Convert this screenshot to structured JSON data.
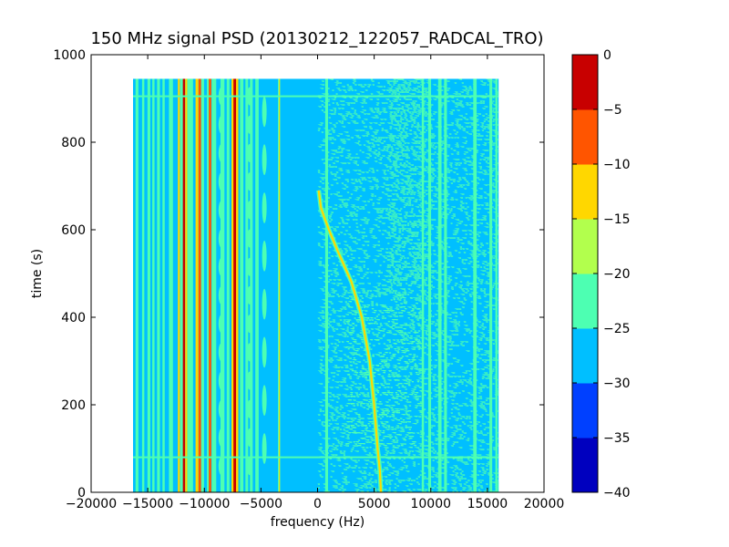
{
  "chart_data": {
    "type": "heatmap",
    "title": "150 MHz signal PSD (20130212_122057_RADCAL_TRO)",
    "xlabel": "frequency (Hz)",
    "ylabel": "time (s)",
    "xlim": [
      -20000,
      20000
    ],
    "ylim": [
      0,
      1000
    ],
    "x_ticks": [
      -20000,
      -15000,
      -10000,
      -5000,
      0,
      5000,
      10000,
      15000,
      20000
    ],
    "x_tick_labels": [
      "−20000",
      "−15000",
      "−10000",
      "−5000",
      "0",
      "5000",
      "10000",
      "15000",
      "20000"
    ],
    "y_ticks": [
      0,
      200,
      400,
      600,
      800,
      1000
    ],
    "y_tick_labels": [
      "0",
      "200",
      "400",
      "600",
      "800",
      "1000"
    ],
    "data_extent": {
      "freq": [
        -16300,
        16000
      ],
      "time": [
        0,
        945
      ]
    },
    "background_level": -27.5,
    "colorbar": {
      "levels": [
        -40,
        -35,
        -30,
        -25,
        -20,
        -15,
        -10,
        -5,
        0
      ],
      "tick_labels": [
        "−40",
        "−35",
        "−30",
        "−25",
        "−20",
        "−15",
        "−10",
        "−5",
        "0"
      ],
      "colors": [
        "#0000bf",
        "#0033ff",
        "#0099ff",
        "#00bfff",
        "#4dffb2",
        "#b2ff4d",
        "#ffcc00",
        "#ff5500",
        "#cc0000"
      ],
      "band_colors": [
        "#0000bf",
        "#0040ff",
        "#00bfff",
        "#4dffb2",
        "#b2ff4d",
        "#ffd700",
        "#ff5500",
        "#c80000"
      ]
    },
    "stripes": [
      {
        "f": -15950,
        "w": 250,
        "level": -22
      },
      {
        "f": -15400,
        "w": 200,
        "level": -22
      },
      {
        "f": -14900,
        "w": 250,
        "level": -22
      },
      {
        "f": -14500,
        "w": 200,
        "level": -22
      },
      {
        "f": -14050,
        "w": 250,
        "level": -22
      },
      {
        "f": -13600,
        "w": 200,
        "level": -22
      },
      {
        "f": -12950,
        "w": 350,
        "level": -22
      },
      {
        "f": -12250,
        "w": 180,
        "level": -15
      },
      {
        "f": -12000,
        "w": 260,
        "level": -22
      },
      {
        "f": -11800,
        "w": 200,
        "level": -5
      },
      {
        "f": -11600,
        "w": 180,
        "level": -15
      },
      {
        "f": -11250,
        "w": 500,
        "level": -22
      },
      {
        "f": -10650,
        "w": 250,
        "level": -15
      },
      {
        "f": -10400,
        "w": 220,
        "level": -10
      },
      {
        "f": -10150,
        "w": 250,
        "level": -22
      },
      {
        "f": -9650,
        "w": 250,
        "level": -22
      },
      {
        "f": -9500,
        "w": 220,
        "level": -10
      },
      {
        "f": -9150,
        "w": 400,
        "level": -22
      },
      {
        "f": -8400,
        "w": 350,
        "level": -22
      },
      {
        "f": -7900,
        "w": 250,
        "level": -22
      },
      {
        "f": -7500,
        "w": 200,
        "level": -15
      },
      {
        "f": -7300,
        "w": 260,
        "level": -5
      },
      {
        "f": -7100,
        "w": 200,
        "level": -15
      },
      {
        "f": -6700,
        "w": 300,
        "level": -22
      },
      {
        "f": -6250,
        "w": 250,
        "level": -22
      },
      {
        "f": -5850,
        "w": 250,
        "level": -22
      },
      {
        "f": -5350,
        "w": 300,
        "level": -22
      },
      {
        "f": -3400,
        "w": 200,
        "level": -22
      },
      {
        "f": -3380,
        "w": 60,
        "level": -15
      },
      {
        "f": 800,
        "w": 250,
        "level": -22
      },
      {
        "f": 9300,
        "w": 200,
        "level": -22
      },
      {
        "f": 9900,
        "w": 250,
        "level": -22
      },
      {
        "f": 10800,
        "w": 300,
        "level": -22
      },
      {
        "f": 11300,
        "w": 250,
        "level": -22
      },
      {
        "f": 13900,
        "w": 300,
        "level": -22
      },
      {
        "f": 15300,
        "w": 250,
        "level": -22
      },
      {
        "f": 15800,
        "w": 200,
        "level": -22
      }
    ],
    "noise_bands": [
      {
        "f": [
          0,
          16000
        ],
        "t": [
          0,
          945
        ],
        "level": -22,
        "density": 0.18
      },
      {
        "f": [
          6000,
          10000
        ],
        "t": [
          450,
          945
        ],
        "level": -22,
        "density": 0.22
      },
      {
        "f": [
          2500,
          9000
        ],
        "t": [
          100,
          450
        ],
        "level": -22,
        "density": 0.12
      }
    ],
    "horizontal_lines": [
      {
        "t": 80,
        "f": [
          -16300,
          16000
        ],
        "level": -22
      },
      {
        "t": 905,
        "f": [
          -16300,
          16000
        ],
        "level": -22
      }
    ],
    "sweep": {
      "level": -15,
      "points": [
        {
          "f": 5600,
          "t": 0
        },
        {
          "f": 5500,
          "t": 50
        },
        {
          "f": 5300,
          "t": 100
        },
        {
          "f": 5000,
          "t": 200
        },
        {
          "f": 4600,
          "t": 300
        },
        {
          "f": 3900,
          "t": 400
        },
        {
          "f": 3000,
          "t": 480
        },
        {
          "f": 1800,
          "t": 550
        },
        {
          "f": 1000,
          "t": 600
        },
        {
          "f": 300,
          "t": 650
        },
        {
          "f": 100,
          "t": 690
        }
      ]
    },
    "blobs": [
      {
        "f": -8500,
        "t_start": 60,
        "t_end": 930,
        "period": 65,
        "level": -22,
        "w": 500
      },
      {
        "f": -6000,
        "t_start": 60,
        "t_end": 930,
        "period": 65,
        "level": -22,
        "w": 450
      },
      {
        "f": -4700,
        "t_start": 100,
        "t_end": 900,
        "period": 110,
        "level": -22,
        "w": 400
      }
    ]
  }
}
